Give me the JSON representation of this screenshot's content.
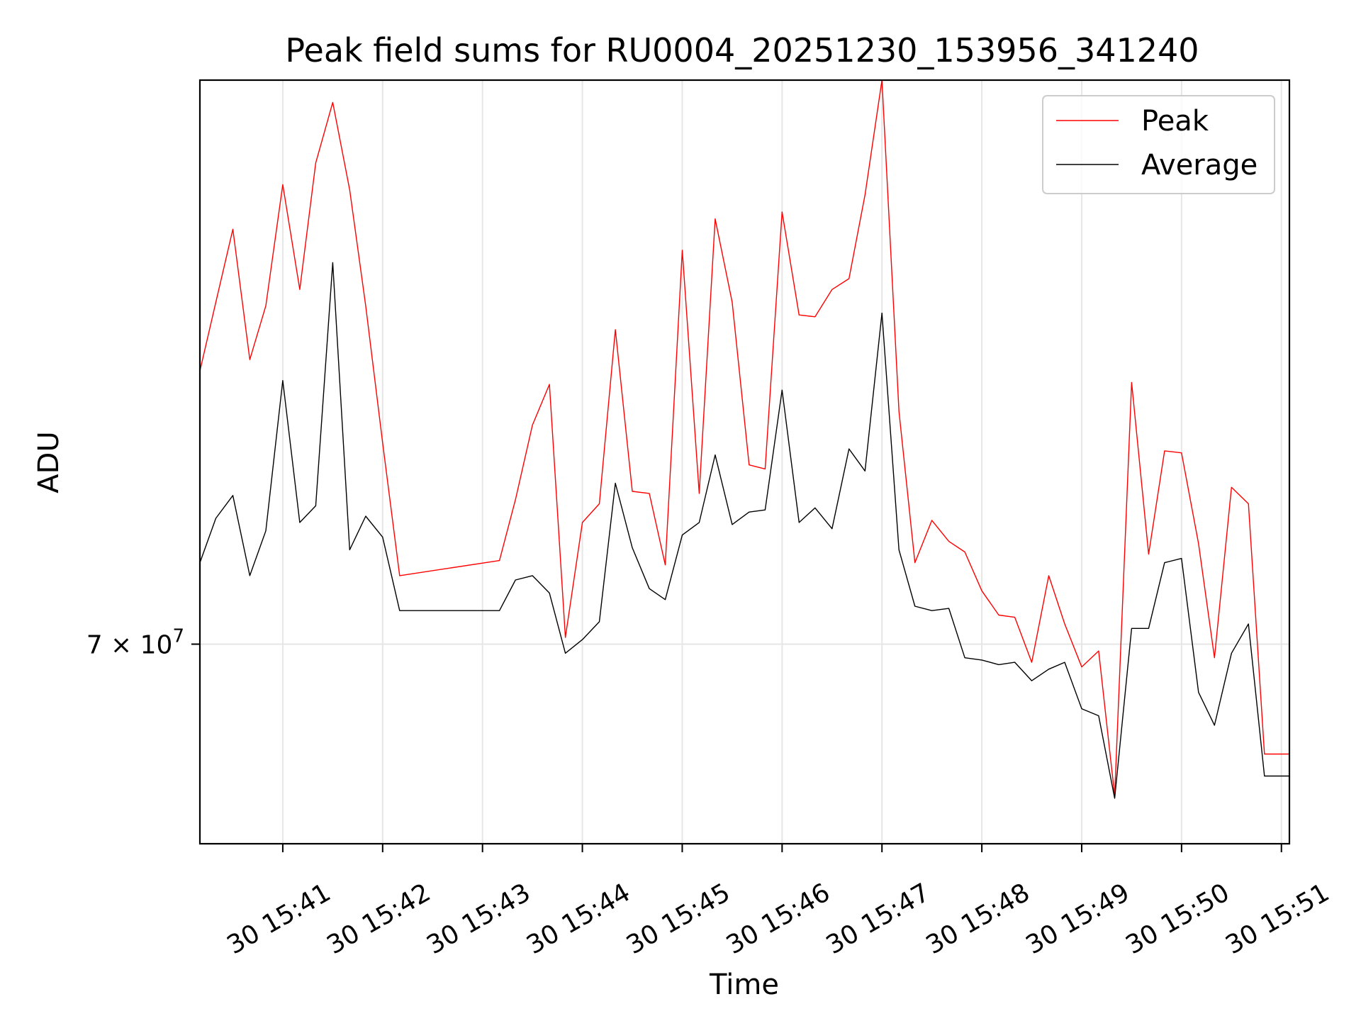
{
  "chart_data": {
    "type": "line",
    "title": "Peak field sums for RU0004_20251230_153956_341240",
    "xlabel": "Time",
    "ylabel": "ADU",
    "scale_y": "log",
    "ylim": [
      61700000,
      100000000
    ],
    "xlim": [
      40.17,
      51.08
    ],
    "x_unit": "minutes after 15:00",
    "grid": true,
    "legend_position": "upper right",
    "x_ticks": [
      {
        "value": 41,
        "label": "30 15:41"
      },
      {
        "value": 42,
        "label": "30 15:42"
      },
      {
        "value": 43,
        "label": "30 15:43"
      },
      {
        "value": 44,
        "label": "30 15:44"
      },
      {
        "value": 45,
        "label": "30 15:45"
      },
      {
        "value": 46,
        "label": "30 15:46"
      },
      {
        "value": 47,
        "label": "30 15:47"
      },
      {
        "value": 48,
        "label": "30 15:48"
      },
      {
        "value": 49,
        "label": "30 15:49"
      },
      {
        "value": 50,
        "label": "30 15:50"
      },
      {
        "value": 51,
        "label": "30 15:51"
      }
    ],
    "y_ticks": [
      {
        "value": 70000000,
        "label_base": "7 × 10",
        "label_exp": "7"
      }
    ],
    "x": [
      40.17,
      40.33,
      40.5,
      40.67,
      40.83,
      41.0,
      41.17,
      41.33,
      41.5,
      41.67,
      41.83,
      42.0,
      42.17,
      43.17,
      43.33,
      43.5,
      43.67,
      43.83,
      44.0,
      44.17,
      44.33,
      44.5,
      44.67,
      44.83,
      45.0,
      45.17,
      45.33,
      45.5,
      45.67,
      45.83,
      46.0,
      46.17,
      46.33,
      46.5,
      46.67,
      46.83,
      47.0,
      47.17,
      47.33,
      47.5,
      47.67,
      47.83,
      48.0,
      48.17,
      48.33,
      48.5,
      48.67,
      48.83,
      49.0,
      49.17,
      49.33,
      49.5,
      49.67,
      49.83,
      50.0,
      50.17,
      50.33,
      50.5,
      50.67,
      50.83,
      51.0,
      51.08
    ],
    "series": [
      {
        "name": "Peak",
        "color": "#ff0000",
        "values": [
          83200000,
          86900000,
          91000000,
          83800000,
          86700000,
          93600000,
          87600000,
          94900000,
          98600000,
          93300000,
          86700000,
          79500000,
          73100000,
          73800000,
          76700000,
          80400000,
          82500000,
          70300000,
          75600000,
          76500000,
          85400000,
          77100000,
          77000000,
          73600000,
          89800000,
          77000000,
          91600000,
          86900000,
          78400000,
          78200000,
          92000000,
          86200000,
          86100000,
          87600000,
          88200000,
          93000000,
          100000000,
          81100000,
          73700000,
          75700000,
          74700000,
          74200000,
          72400000,
          71300000,
          71200000,
          69200000,
          73100000,
          70900000,
          69000000,
          69700000,
          63600000,
          82600000,
          74100000,
          79100000,
          79000000,
          74600000,
          69400000,
          77300000,
          76500000,
          65300000,
          65300000,
          65300000
        ]
      },
      {
        "name": "Average",
        "color": "#000000",
        "values": [
          73700000,
          75800000,
          76900000,
          73100000,
          75200000,
          82700000,
          75600000,
          76400000,
          89100000,
          74300000,
          75900000,
          74900000,
          71500000,
          71500000,
          72900000,
          73100000,
          72300000,
          69600000,
          70200000,
          71000000,
          77500000,
          74400000,
          72500000,
          72000000,
          75000000,
          75600000,
          78900000,
          75500000,
          76100000,
          76200000,
          82200000,
          75600000,
          76300000,
          75300000,
          79200000,
          78100000,
          86300000,
          74300000,
          71700000,
          71500000,
          71600000,
          69400000,
          69300000,
          69100000,
          69200000,
          68400000,
          68900000,
          69200000,
          67200000,
          66900000,
          63500000,
          70700000,
          70700000,
          73700000,
          73900000,
          67900000,
          66500000,
          69600000,
          70900000,
          64400000,
          64400000,
          64400000
        ]
      }
    ]
  }
}
